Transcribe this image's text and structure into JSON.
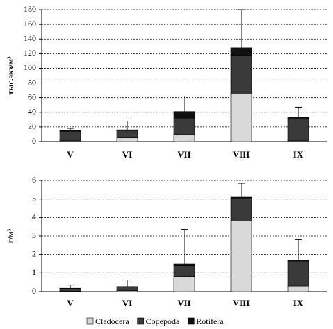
{
  "chart_data": [
    {
      "type": "stacked-bar",
      "ylabel": "тыс.экз/м³",
      "categories": [
        "V",
        "VI",
        "VII",
        "VIII",
        "IX"
      ],
      "series": [
        {
          "name": "Cladocera",
          "color": "#d9d9d9",
          "values": [
            1,
            5,
            10,
            66,
            1
          ]
        },
        {
          "name": "Copepoda",
          "color": "#3a3a3a",
          "values": [
            13,
            10,
            22,
            52,
            31
          ]
        },
        {
          "name": "Rotifera",
          "color": "#111111",
          "values": [
            1,
            1,
            9,
            10,
            1
          ]
        }
      ],
      "errors": [
        3,
        12,
        21,
        52,
        14
      ],
      "ylim": [
        0,
        180
      ],
      "yticks": [
        0,
        20,
        40,
        60,
        80,
        100,
        120,
        140,
        160,
        180
      ],
      "grid": true
    },
    {
      "type": "stacked-bar",
      "ylabel": "г/м³",
      "categories": [
        "V",
        "VI",
        "VII",
        "VIII",
        "IX"
      ],
      "series": [
        {
          "color": "#d9d9d9",
          "values": [
            0.02,
            0.05,
            0.8,
            3.8,
            0.3
          ]
        },
        {
          "color": "#3a3a3a",
          "values": [
            0.15,
            0.2,
            0.6,
            1.2,
            1.35
          ]
        },
        {
          "color": "#111111",
          "values": [
            0.01,
            0.02,
            0.1,
            0.1,
            0.05
          ]
        }
      ],
      "errors": [
        0.17,
        0.35,
        1.85,
        0.75,
        1.1
      ],
      "ylim": [
        0,
        6
      ],
      "yticks": [
        0,
        1,
        2,
        3,
        4,
        5,
        6
      ],
      "grid": true
    }
  ]
}
